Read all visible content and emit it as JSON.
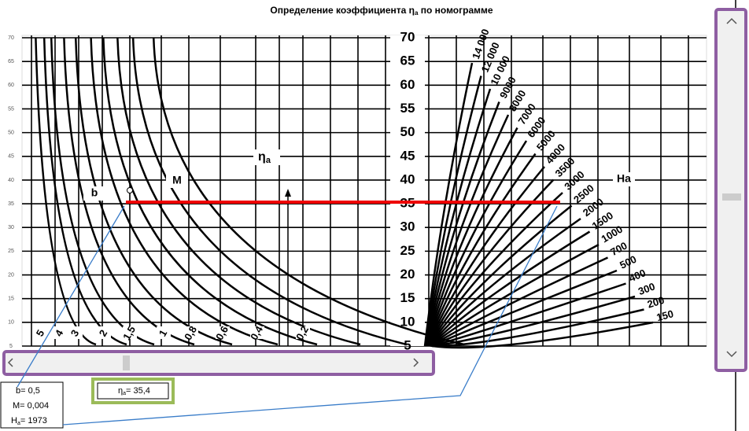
{
  "header": {
    "title_prefix": "Определение коэффициента η",
    "title_sub": "a",
    "title_suffix": " по номограмме"
  },
  "left_axis": {
    "labels": [
      "70",
      "65",
      "60",
      "55",
      "50",
      "45",
      "40",
      "35",
      "30",
      "25",
      "20",
      "15",
      "10",
      "5"
    ]
  },
  "nomogram": {
    "axis_labels": [
      "70",
      "65",
      "60",
      "55",
      "50",
      "45",
      "40",
      "35",
      "30",
      "25",
      "20",
      "15",
      "10",
      "5"
    ],
    "b_curves": [
      "5",
      "4",
      "3",
      "2",
      "1,5",
      "1",
      "0,8",
      "0,6",
      "0,4",
      "0,2"
    ],
    "h_curves": [
      "14 000",
      "12 000",
      "10 000",
      "9000",
      "8000",
      "7000",
      "6000",
      "5000",
      "4000",
      "3500",
      "3000",
      "2500",
      "2000",
      "1500",
      "1000",
      "700",
      "500",
      "400",
      "300",
      "200",
      "150"
    ],
    "label_b": "b",
    "label_m": "M",
    "label_eta": "η",
    "label_eta_sub": "a",
    "label_ha": "Ha"
  },
  "results": {
    "b": "b= 0,5",
    "m": "M= 0,004",
    "ha_prefix": "H",
    "ha_sub": "a",
    "ha_value": "= 1973",
    "eta_prefix": "η",
    "eta_sub": "a",
    "eta_value": "= 35,4"
  }
}
